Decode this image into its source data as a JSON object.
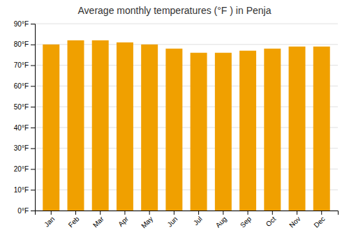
{
  "chart_data": {
    "type": "bar",
    "title": "Average monthly temperatures (°F ) in Penja",
    "categories": [
      "Jan",
      "Feb",
      "Mar",
      "Apr",
      "May",
      "Jun",
      "Jul",
      "Aug",
      "Sep",
      "Oct",
      "Nov",
      "Dec"
    ],
    "values": [
      80,
      82,
      82,
      81,
      80,
      78,
      76,
      76,
      77,
      78,
      79,
      79
    ],
    "color": "#F0A000",
    "ylim": [
      0,
      90
    ],
    "yticks": [
      {
        "value": 0,
        "label": "0°F"
      },
      {
        "value": 10,
        "label": "10°F"
      },
      {
        "value": 20,
        "label": "20°F"
      },
      {
        "value": 30,
        "label": "30°F"
      },
      {
        "value": 40,
        "label": "40°F"
      },
      {
        "value": 50,
        "label": "50°F"
      },
      {
        "value": 60,
        "label": "60°F"
      },
      {
        "value": 70,
        "label": "70°F"
      },
      {
        "value": 80,
        "label": "80°F"
      },
      {
        "value": 90,
        "label": "90°F"
      }
    ],
    "grid": true
  }
}
